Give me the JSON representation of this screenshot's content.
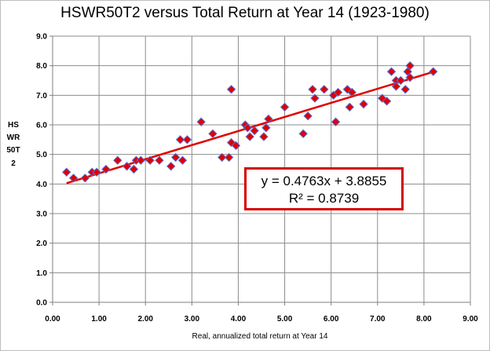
{
  "chart_data": {
    "type": "scatter",
    "title": "HSWR50T2 versus Total Return at Year 14 (1923-1980)",
    "xlabel": "Real, annualized total return at Year 14",
    "ylabel": "HSWR50T2",
    "xlim": [
      0,
      9
    ],
    "ylim": [
      0,
      9
    ],
    "x_ticks": [
      "0.00",
      "1.00",
      "2.00",
      "3.00",
      "4.00",
      "5.00",
      "6.00",
      "7.00",
      "8.00",
      "9.00"
    ],
    "y_ticks": [
      "0.0",
      "1.0",
      "2.0",
      "3.0",
      "4.0",
      "5.0",
      "6.0",
      "7.0",
      "8.0",
      "9.0"
    ],
    "grid": true,
    "legend": "none",
    "colors": {
      "marker": "#e00000",
      "marker_edge": "#5a6fd0",
      "trendline": "#e00000",
      "box_border": "#d40000"
    },
    "points": [
      [
        0.3,
        4.4
      ],
      [
        0.45,
        4.2
      ],
      [
        0.7,
        4.2
      ],
      [
        0.85,
        4.4
      ],
      [
        0.95,
        4.4
      ],
      [
        1.15,
        4.5
      ],
      [
        1.4,
        4.8
      ],
      [
        1.6,
        4.6
      ],
      [
        1.75,
        4.5
      ],
      [
        1.8,
        4.8
      ],
      [
        1.9,
        4.8
      ],
      [
        2.1,
        4.8
      ],
      [
        2.3,
        4.8
      ],
      [
        2.55,
        4.6
      ],
      [
        2.65,
        4.9
      ],
      [
        2.75,
        5.5
      ],
      [
        2.8,
        4.8
      ],
      [
        2.9,
        5.5
      ],
      [
        3.2,
        6.1
      ],
      [
        3.45,
        5.7
      ],
      [
        3.65,
        4.9
      ],
      [
        3.8,
        4.9
      ],
      [
        3.85,
        7.2
      ],
      [
        3.85,
        5.4
      ],
      [
        3.95,
        5.3
      ],
      [
        4.15,
        6.0
      ],
      [
        4.2,
        5.9
      ],
      [
        4.25,
        5.6
      ],
      [
        4.35,
        5.8
      ],
      [
        4.55,
        5.6
      ],
      [
        4.6,
        5.9
      ],
      [
        4.65,
        6.2
      ],
      [
        5.0,
        6.6
      ],
      [
        5.4,
        5.7
      ],
      [
        5.5,
        6.3
      ],
      [
        5.6,
        7.2
      ],
      [
        5.65,
        6.9
      ],
      [
        5.85,
        7.2
      ],
      [
        6.05,
        7.0
      ],
      [
        6.1,
        6.1
      ],
      [
        6.15,
        7.1
      ],
      [
        6.35,
        7.2
      ],
      [
        6.4,
        6.6
      ],
      [
        6.45,
        7.1
      ],
      [
        6.7,
        6.7
      ],
      [
        7.1,
        6.9
      ],
      [
        7.2,
        6.8
      ],
      [
        7.3,
        7.8
      ],
      [
        7.4,
        7.5
      ],
      [
        7.4,
        7.3
      ],
      [
        7.5,
        7.5
      ],
      [
        7.6,
        7.2
      ],
      [
        7.65,
        7.8
      ],
      [
        7.7,
        8.0
      ],
      [
        7.7,
        7.6
      ],
      [
        8.2,
        7.8
      ]
    ],
    "trendline": {
      "slope": 0.4763,
      "intercept": 3.8855,
      "x_range": [
        0.3,
        8.2
      ]
    },
    "equation_label": "y = 0.4763x + 3.8855",
    "r2_label": "R² = 0.8739"
  }
}
